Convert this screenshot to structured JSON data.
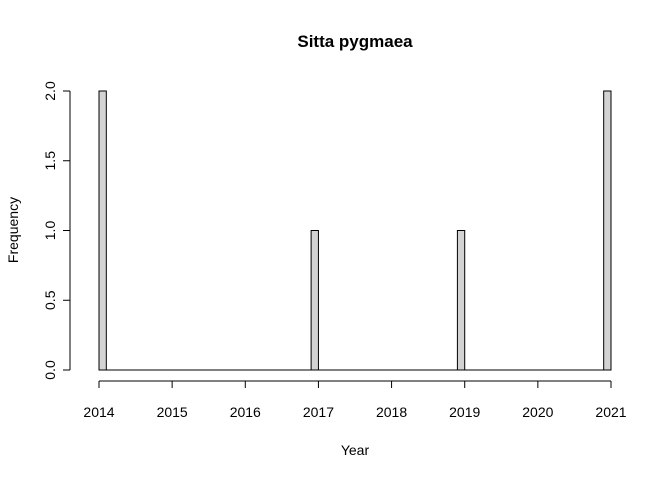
{
  "chart_data": {
    "type": "bar",
    "title": "Sitta pygmaea",
    "xlabel": "Year",
    "ylabel": "Frequency",
    "x_ticks": [
      "2014",
      "2015",
      "2016",
      "2017",
      "2018",
      "2019",
      "2020",
      "2021"
    ],
    "y_ticks": [
      "0.0",
      "0.5",
      "1.0",
      "1.5",
      "2.0"
    ],
    "xlim": [
      2014,
      2021
    ],
    "ylim": [
      0,
      2
    ],
    "bar_fill": "#d3d3d3",
    "bar_stroke": "#000000",
    "bins": [
      {
        "start": 2014.0,
        "end": 2014.1,
        "value": 2
      },
      {
        "start": 2016.9,
        "end": 2017.0,
        "value": 1
      },
      {
        "start": 2018.9,
        "end": 2019.0,
        "value": 1
      },
      {
        "start": 2020.9,
        "end": 2021.0,
        "value": 2
      }
    ]
  }
}
